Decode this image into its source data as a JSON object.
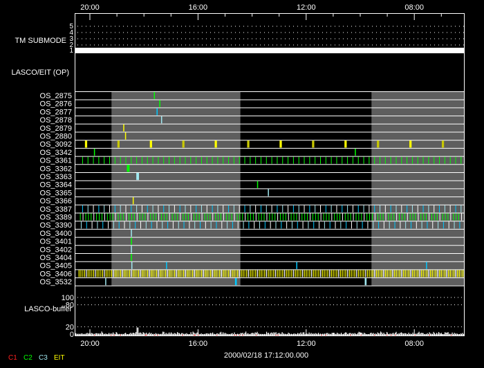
{
  "time_axis": {
    "ticks": [
      "20:00",
      "16:00",
      "12:00",
      "08:00"
    ],
    "date": "2000/02/18 17:12:00.000"
  },
  "tm_submode": {
    "label": "TM SUBMODE",
    "levels": [
      "5",
      "4",
      "3",
      "2",
      "1"
    ],
    "current_level": 1
  },
  "op_panel": {
    "label": "LASCO/EIT (OP)"
  },
  "colors": {
    "C1": "#ff2020",
    "C2": "#00ff00",
    "C3": "#a0e8f0",
    "C3b": "#00c8ff",
    "EIT": "#ffff00",
    "EIT_dim": "#c8c800",
    "shade": "#5e5e5e"
  },
  "shaded_intervals": [
    [
      "19:12",
      "14:26"
    ],
    [
      "09:35",
      "06:09"
    ]
  ],
  "rows": [
    {
      "label": "OS_2875",
      "events": [
        [
          "17:38",
          "C2"
        ]
      ]
    },
    {
      "label": "OS_2876",
      "events": [
        [
          "17:26",
          "C2"
        ]
      ]
    },
    {
      "label": "OS_2877",
      "events": [
        [
          "17:32",
          "C3b"
        ]
      ]
    },
    {
      "label": "OS_2878",
      "events": [
        [
          "17:22",
          "C3"
        ]
      ]
    },
    {
      "label": "OS_2879",
      "events": [
        [
          "18:46",
          "EIT"
        ]
      ]
    },
    {
      "label": "OS_2880",
      "events": [
        [
          "18:42",
          "EIT"
        ]
      ]
    },
    {
      "label": "OS_3092",
      "periodic": {
        "start": "20:11",
        "interval_min": 72,
        "colors": [
          "EIT",
          "EIT_dim"
        ],
        "width_min": 5
      }
    },
    {
      "label": "OS_3342",
      "events": [
        [
          "19:51",
          "C2"
        ],
        [
          "10:12",
          "C2"
        ]
      ]
    },
    {
      "label": "OS_3361",
      "periodic": {
        "start": "20:17",
        "interval_min": 12,
        "colors": [
          "C2",
          "C2",
          "C2"
        ],
        "width_min": 1
      }
    },
    {
      "label": "OS_3362",
      "events": [
        [
          "18:38",
          "C2",
          6
        ]
      ]
    },
    {
      "label": "OS_3363",
      "events": [
        [
          "18:17",
          "C3",
          6
        ]
      ]
    },
    {
      "label": "OS_3364",
      "events": [
        [
          "13:49",
          "C2"
        ]
      ]
    },
    {
      "label": "OS_3365",
      "events": [
        [
          "13:25",
          "C3"
        ]
      ]
    },
    {
      "label": "OS_3366",
      "events": [
        [
          "18:25",
          "EIT"
        ]
      ]
    },
    {
      "label": "OS_3387",
      "periodic": {
        "start": "20:17",
        "interval_min": 12,
        "colors": [
          "C3b",
          "C3",
          "white"
        ],
        "width_min": 1
      }
    },
    {
      "label": "OS_3389",
      "periodic": {
        "start": "20:22",
        "interval_min": 6,
        "colors": [
          "C2",
          "white",
          "C2",
          "C2"
        ],
        "width_min": 1
      }
    },
    {
      "label": "OS_3390",
      "periodic": {
        "start": "20:20",
        "interval_min": 12,
        "colors": [
          "C3",
          "C3b",
          "white"
        ],
        "width_min": 1
      }
    },
    {
      "label": "OS_3400",
      "events": [
        [
          "18:29",
          "C3"
        ]
      ]
    },
    {
      "label": "OS_3401",
      "events": [
        [
          "18:29",
          "C2"
        ]
      ]
    },
    {
      "label": "OS_3402",
      "events": [
        [
          "18:29",
          "C3"
        ]
      ]
    },
    {
      "label": "OS_3404",
      "events": [
        [
          "18:29",
          "C2"
        ]
      ]
    },
    {
      "label": "OS_3405",
      "events": [
        [
          "18:28",
          "C3"
        ],
        [
          "17:11",
          "C3b"
        ],
        [
          "12:22",
          "C3b"
        ],
        [
          "07:34",
          "C3b"
        ]
      ]
    },
    {
      "label": "OS_3406",
      "periodic": {
        "start": "20:25",
        "interval_min": 4,
        "colors": [
          "EIT",
          "EIT",
          "EIT_dim",
          "EIT",
          "white"
        ],
        "width_min": 2
      }
    },
    {
      "label": "OS_3532",
      "events": [
        [
          "19:26",
          "C3"
        ],
        [
          "14:38",
          "C3b",
          4
        ],
        [
          "09:50",
          "C3",
          4
        ]
      ]
    }
  ],
  "buffer": {
    "label": "LASCO-buffer",
    "ticks": [
      "100",
      "80",
      "20",
      "0"
    ],
    "tick_values": [
      100,
      80,
      20,
      0
    ],
    "typical_range": [
      0,
      8
    ],
    "peak": {
      "time": "18:15",
      "value": 18
    }
  },
  "legend": [
    {
      "label": "C1",
      "color": "#ff2020"
    },
    {
      "label": "C2",
      "color": "#00ff00"
    },
    {
      "label": "C3",
      "color": "#a0e8f0"
    },
    {
      "label": "EIT",
      "color": "#ffff00"
    }
  ]
}
